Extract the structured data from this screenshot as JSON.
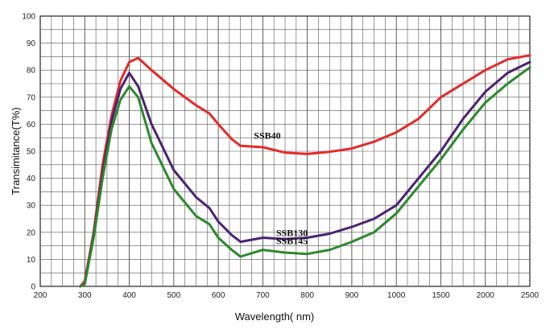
{
  "chart_data": {
    "type": "line",
    "xlabel": "Wavelength( nm)",
    "ylabel": "Transimitance(T%)",
    "ylim": [
      0,
      100
    ],
    "y_ticks": [
      "0",
      "10",
      "20",
      "30",
      "40",
      "50",
      "60",
      "70",
      "80",
      "90",
      "100"
    ],
    "x_ticks": [
      "200",
      "300",
      "400",
      "500",
      "600",
      "700",
      "800",
      "900",
      "1000",
      "1500",
      "2000",
      "2500"
    ],
    "grid": true,
    "series": [
      {
        "name": "SSB40",
        "color": "#e32a2a",
        "x": [
          290,
          300,
          320,
          340,
          360,
          380,
          400,
          420,
          450,
          500,
          550,
          580,
          600,
          630,
          650,
          700,
          750,
          800,
          850,
          900,
          950,
          1000,
          1250,
          1500,
          1750,
          2000,
          2250,
          2500
        ],
        "y": [
          0,
          2,
          20,
          45,
          63,
          76,
          83,
          84.5,
          80,
          73,
          67,
          64,
          60,
          54.5,
          52,
          51.5,
          49.5,
          49,
          49.8,
          51,
          53.5,
          57,
          62,
          70,
          75,
          80,
          84,
          85.5
        ]
      },
      {
        "name": "SSB130",
        "color": "#4b2273",
        "x": [
          290,
          300,
          320,
          340,
          360,
          380,
          400,
          420,
          450,
          500,
          550,
          580,
          600,
          630,
          650,
          700,
          750,
          800,
          850,
          900,
          950,
          1000,
          1250,
          1500,
          1750,
          2000,
          2250,
          2500
        ],
        "y": [
          0,
          1,
          19,
          42,
          61,
          73,
          79,
          74,
          60,
          43,
          33,
          29,
          24,
          19,
          16.5,
          18,
          17.5,
          18,
          19.5,
          22,
          25,
          30,
          40,
          50,
          62,
          72,
          79,
          83
        ]
      },
      {
        "name": "SSB145",
        "color": "#2a8a2a",
        "x": [
          290,
          300,
          320,
          340,
          360,
          380,
          400,
          420,
          450,
          500,
          550,
          580,
          600,
          630,
          650,
          700,
          750,
          800,
          850,
          900,
          950,
          1000,
          1250,
          1500,
          1750,
          2000,
          2250,
          2500
        ],
        "y": [
          0,
          1,
          18,
          40,
          58,
          69,
          74,
          70,
          53,
          36,
          26,
          23,
          18,
          13.5,
          11,
          13.5,
          12.5,
          12,
          13.5,
          16.5,
          20,
          27,
          37,
          47,
          58,
          68,
          75,
          81
        ]
      }
    ]
  }
}
